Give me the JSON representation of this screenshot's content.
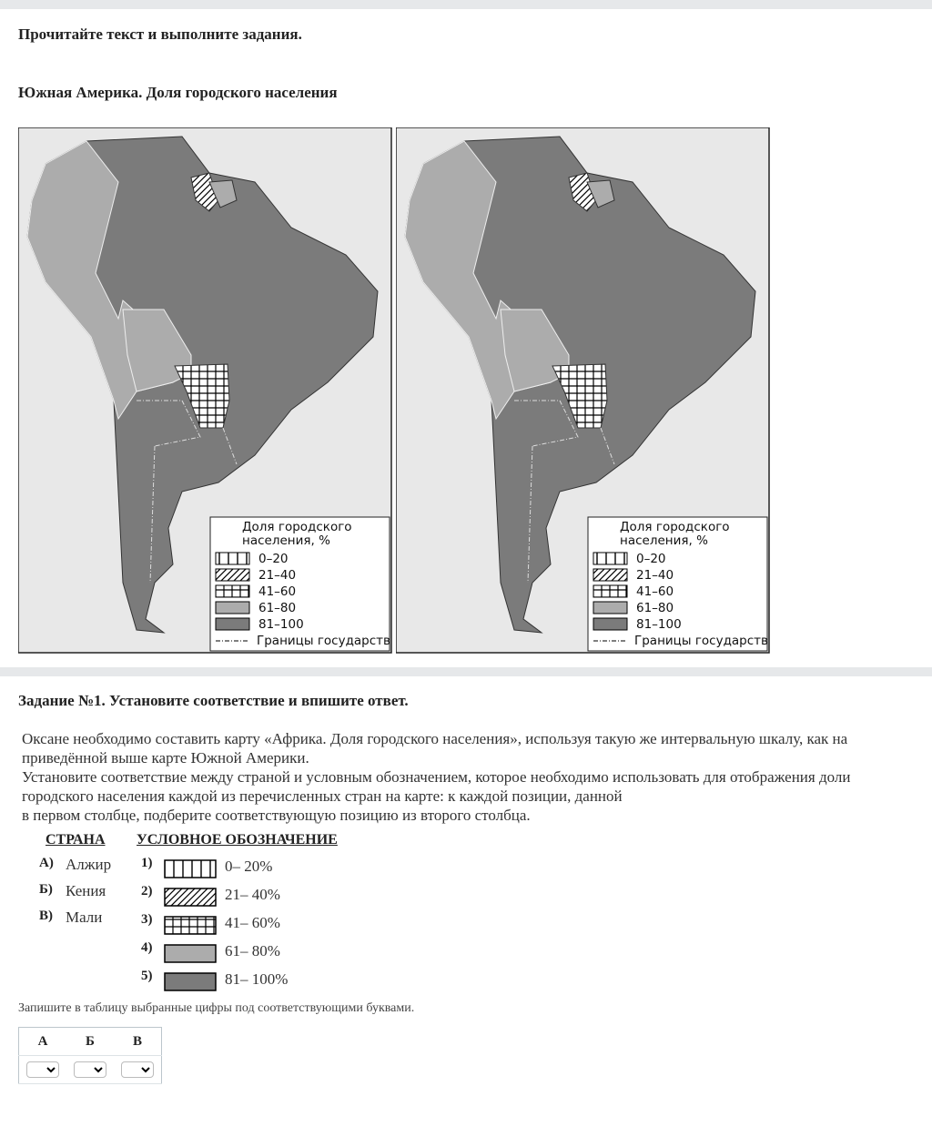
{
  "header": {
    "instruction": "Прочитайте текст и выполните задания.",
    "map_title": "Южная Америка. Доля городского населения"
  },
  "map_legend": {
    "title_lines": [
      "Доля городского",
      "населения, %"
    ],
    "items": [
      "0–20",
      "21–40",
      "41–60",
      "61–80",
      "81–100"
    ],
    "borders": "Границы государств"
  },
  "task": {
    "title": "Задание №1. Установите соответствие и впишите ответ.",
    "text_lines": [
      "Оксане необходимо составить карту «Африка. Доля городского населения», используя такую же интервальную шкалу, как на",
      "приведённой выше карте Южной Америки.",
      "Установите соответствие между страной и условным обозначением, которое необходимо использовать для отображения доли",
      "городского населения каждой из перечисленных стран на карте: к каждой позиции, данной",
      "в первом столбце, подберите соответствующую позицию из второго столбца."
    ],
    "columns": [
      "СТРАНА",
      "УСЛОВНОЕ ОБОЗНАЧЕНИЕ"
    ],
    "countries": [
      {
        "letter": "А)",
        "name": "Алжир"
      },
      {
        "letter": "Б)",
        "name": "Кения"
      },
      {
        "letter": "В)",
        "name": "Мали"
      }
    ],
    "options": [
      {
        "number": "1)",
        "label": "0– 20%"
      },
      {
        "number": "2)",
        "label": "21– 40%"
      },
      {
        "number": "3)",
        "label": "41– 60%"
      },
      {
        "number": "4)",
        "label": "61– 80%"
      },
      {
        "number": "5)",
        "label": "81– 100%"
      }
    ],
    "answer_prompt": "Запишите в таблицу выбранные цифры под соответствующими буквами.",
    "answer_headers": [
      "А",
      "Б",
      "В"
    ]
  }
}
